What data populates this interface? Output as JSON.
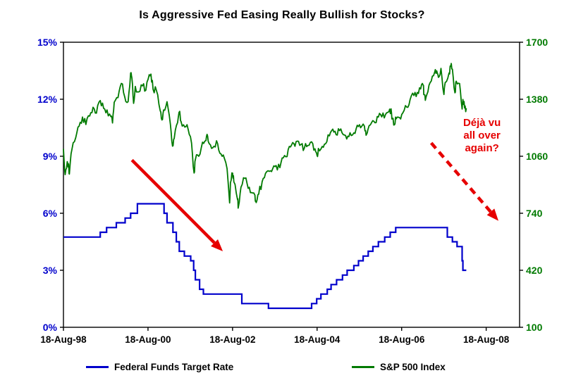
{
  "chart_data": {
    "type": "line",
    "title": "Is Aggressive Fed Easing Really Bullish for Stocks?",
    "x_axis": {
      "tick_labels": [
        "18-Aug-98",
        "18-Aug-00",
        "18-Aug-02",
        "18-Aug-04",
        "18-Aug-06",
        "18-Aug-08"
      ],
      "tick_years": [
        1998.63,
        2000.63,
        2002.63,
        2004.63,
        2006.63,
        2008.63
      ],
      "range_years": [
        1998.63,
        2009.42
      ],
      "grid": false
    },
    "left_axis": {
      "title": "Federal Funds Target Rate",
      "label_color": "#0000cc",
      "ticks": [
        "0%",
        "3%",
        "6%",
        "9%",
        "12%",
        "15%"
      ],
      "values": [
        0,
        3,
        6,
        9,
        12,
        15
      ],
      "range": [
        0,
        15
      ]
    },
    "right_axis": {
      "title": "S&P 500 Index",
      "label_color": "#007a00",
      "ticks": [
        "100",
        "420",
        "740",
        "1060",
        "1380",
        "1700"
      ],
      "values": [
        100,
        420,
        740,
        1060,
        1380,
        1700
      ],
      "range": [
        100,
        1700
      ]
    },
    "series": [
      {
        "name": "Federal Funds Target Rate",
        "axis": "left",
        "color": "#0000cc",
        "style": "step",
        "end_year": 2008.16,
        "points": [
          [
            1998.63,
            4.75
          ],
          [
            1999.5,
            5.0
          ],
          [
            1999.65,
            5.25
          ],
          [
            1999.88,
            5.5
          ],
          [
            2000.09,
            5.75
          ],
          [
            2000.22,
            6.0
          ],
          [
            2000.38,
            6.5
          ],
          [
            2001.01,
            6.0
          ],
          [
            2001.08,
            5.5
          ],
          [
            2001.22,
            5.0
          ],
          [
            2001.3,
            4.5
          ],
          [
            2001.37,
            4.0
          ],
          [
            2001.49,
            3.75
          ],
          [
            2001.64,
            3.5
          ],
          [
            2001.71,
            3.0
          ],
          [
            2001.75,
            2.5
          ],
          [
            2001.85,
            2.0
          ],
          [
            2001.94,
            1.75
          ],
          [
            2002.85,
            1.25
          ],
          [
            2003.48,
            1.0
          ],
          [
            2004.5,
            1.25
          ],
          [
            2004.62,
            1.5
          ],
          [
            2004.72,
            1.75
          ],
          [
            2004.87,
            2.0
          ],
          [
            2004.96,
            2.25
          ],
          [
            2005.09,
            2.5
          ],
          [
            2005.23,
            2.75
          ],
          [
            2005.34,
            3.0
          ],
          [
            2005.5,
            3.25
          ],
          [
            2005.61,
            3.5
          ],
          [
            2005.72,
            3.75
          ],
          [
            2005.84,
            4.0
          ],
          [
            2005.95,
            4.25
          ],
          [
            2006.08,
            4.5
          ],
          [
            2006.23,
            4.75
          ],
          [
            2006.36,
            5.0
          ],
          [
            2006.49,
            5.25
          ],
          [
            2007.71,
            4.75
          ],
          [
            2007.83,
            4.5
          ],
          [
            2007.94,
            4.25
          ],
          [
            2008.06,
            3.5
          ],
          [
            2008.08,
            3.0
          ]
        ]
      },
      {
        "name": "S&P 500 Index",
        "axis": "right",
        "color": "#007a00",
        "style": "line",
        "points": [
          [
            1998.63,
            1101
          ],
          [
            1998.67,
            957
          ],
          [
            1998.72,
            1030
          ],
          [
            1998.75,
            1017
          ],
          [
            1998.77,
            960
          ],
          [
            1998.83,
            1098
          ],
          [
            1998.92,
            1164
          ],
          [
            1999.0,
            1229
          ],
          [
            1999.08,
            1280
          ],
          [
            1999.16,
            1238
          ],
          [
            1999.25,
            1286
          ],
          [
            1999.33,
            1335
          ],
          [
            1999.41,
            1302
          ],
          [
            1999.5,
            1373
          ],
          [
            1999.58,
            1329
          ],
          [
            1999.66,
            1320
          ],
          [
            1999.75,
            1283
          ],
          [
            1999.79,
            1247
          ],
          [
            1999.83,
            1363
          ],
          [
            1999.92,
            1389
          ],
          [
            2000.0,
            1469
          ],
          [
            2000.08,
            1394
          ],
          [
            2000.16,
            1366
          ],
          [
            2000.22,
            1527
          ],
          [
            2000.25,
            1499
          ],
          [
            2000.29,
            1357
          ],
          [
            2000.33,
            1452
          ],
          [
            2000.41,
            1421
          ],
          [
            2000.5,
            1455
          ],
          [
            2000.58,
            1431
          ],
          [
            2000.66,
            1518
          ],
          [
            2000.7,
            1521
          ],
          [
            2000.75,
            1436
          ],
          [
            2000.83,
            1429
          ],
          [
            2000.92,
            1315
          ],
          [
            2000.96,
            1264
          ],
          [
            2001.0,
            1320
          ],
          [
            2001.08,
            1366
          ],
          [
            2001.16,
            1239
          ],
          [
            2001.21,
            1117
          ],
          [
            2001.25,
            1160
          ],
          [
            2001.33,
            1249
          ],
          [
            2001.38,
            1312
          ],
          [
            2001.41,
            1256
          ],
          [
            2001.5,
            1224
          ],
          [
            2001.58,
            1211
          ],
          [
            2001.66,
            1134
          ],
          [
            2001.72,
            966
          ],
          [
            2001.75,
            1041
          ],
          [
            2001.83,
            1060
          ],
          [
            2001.92,
            1139
          ],
          [
            2002.0,
            1148
          ],
          [
            2002.04,
            1173
          ],
          [
            2002.08,
            1130
          ],
          [
            2002.16,
            1107
          ],
          [
            2002.25,
            1147
          ],
          [
            2002.33,
            1077
          ],
          [
            2002.41,
            1067
          ],
          [
            2002.5,
            990
          ],
          [
            2002.56,
            798
          ],
          [
            2002.58,
            912
          ],
          [
            2002.63,
            965
          ],
          [
            2002.66,
            916
          ],
          [
            2002.75,
            815
          ],
          [
            2002.77,
            777
          ],
          [
            2002.83,
            886
          ],
          [
            2002.92,
            936
          ],
          [
            2003.0,
            880
          ],
          [
            2003.08,
            856
          ],
          [
            2003.16,
            841
          ],
          [
            2003.19,
            800
          ],
          [
            2003.25,
            848
          ],
          [
            2003.33,
            917
          ],
          [
            2003.41,
            964
          ],
          [
            2003.5,
            975
          ],
          [
            2003.58,
            990
          ],
          [
            2003.66,
            1008
          ],
          [
            2003.75,
            996
          ],
          [
            2003.83,
            1051
          ],
          [
            2003.92,
            1058
          ],
          [
            2004.0,
            1112
          ],
          [
            2004.08,
            1131
          ],
          [
            2004.16,
            1145
          ],
          [
            2004.25,
            1126
          ],
          [
            2004.33,
            1107
          ],
          [
            2004.41,
            1121
          ],
          [
            2004.5,
            1141
          ],
          [
            2004.58,
            1102
          ],
          [
            2004.63,
            1064
          ],
          [
            2004.66,
            1104
          ],
          [
            2004.75,
            1115
          ],
          [
            2004.83,
            1130
          ],
          [
            2004.92,
            1174
          ],
          [
            2005.0,
            1212
          ],
          [
            2005.08,
            1181
          ],
          [
            2005.16,
            1204
          ],
          [
            2005.25,
            1181
          ],
          [
            2005.33,
            1157
          ],
          [
            2005.41,
            1192
          ],
          [
            2005.5,
            1191
          ],
          [
            2005.58,
            1234
          ],
          [
            2005.66,
            1220
          ],
          [
            2005.75,
            1229
          ],
          [
            2005.79,
            1178
          ],
          [
            2005.83,
            1207
          ],
          [
            2005.92,
            1249
          ],
          [
            2006.0,
            1248
          ],
          [
            2006.08,
            1280
          ],
          [
            2006.16,
            1281
          ],
          [
            2006.25,
            1295
          ],
          [
            2006.33,
            1311
          ],
          [
            2006.38,
            1326
          ],
          [
            2006.41,
            1270
          ],
          [
            2006.46,
            1236
          ],
          [
            2006.5,
            1270
          ],
          [
            2006.58,
            1277
          ],
          [
            2006.66,
            1304
          ],
          [
            2006.75,
            1336
          ],
          [
            2006.83,
            1378
          ],
          [
            2006.92,
            1401
          ],
          [
            2007.0,
            1418
          ],
          [
            2007.08,
            1438
          ],
          [
            2007.14,
            1459
          ],
          [
            2007.16,
            1407
          ],
          [
            2007.19,
            1374
          ],
          [
            2007.25,
            1421
          ],
          [
            2007.33,
            1482
          ],
          [
            2007.41,
            1531
          ],
          [
            2007.46,
            1539
          ],
          [
            2007.5,
            1503
          ],
          [
            2007.56,
            1553
          ],
          [
            2007.63,
            1407
          ],
          [
            2007.66,
            1474
          ],
          [
            2007.75,
            1527
          ],
          [
            2007.79,
            1565
          ],
          [
            2007.83,
            1549
          ],
          [
            2007.89,
            1416
          ],
          [
            2007.92,
            1481
          ],
          [
            2008.0,
            1468
          ],
          [
            2008.06,
            1325
          ],
          [
            2008.08,
            1379
          ],
          [
            2008.12,
            1331
          ],
          [
            2008.16,
            1330
          ]
        ]
      }
    ],
    "annotations": {
      "solid_arrow": {
        "color": "#e60000",
        "from": [
          2000.25,
          8.8
        ],
        "to": [
          2002.4,
          4.0
        ]
      },
      "dashed_arrow": {
        "color": "#e60000",
        "from": [
          2007.33,
          9.7
        ],
        "to": [
          2008.92,
          5.6
        ]
      },
      "note": {
        "color": "#e60000",
        "lines": [
          "Déjà vu",
          "all over",
          "again?"
        ],
        "at": [
          2008.53,
          10.6
        ]
      }
    },
    "legend": [
      {
        "label": "Federal Funds Target Rate",
        "color": "#0000cc"
      },
      {
        "label": "S&P 500 Index",
        "color": "#007a00"
      }
    ]
  }
}
